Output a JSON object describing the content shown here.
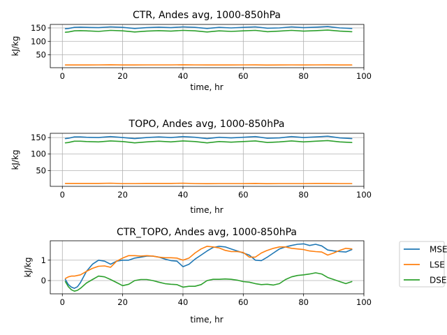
{
  "chart_data": [
    {
      "type": "line",
      "title": "CTR, Andes avg, 1000-850hPa",
      "xlabel": "time, hr",
      "ylabel": "kJ/kg",
      "xlim": [
        -4,
        100
      ],
      "ylim": [
        2,
        163
      ],
      "xticks": [
        0,
        20,
        40,
        60,
        80,
        100
      ],
      "yticks": [
        50,
        100,
        150
      ],
      "grid": true,
      "x": [
        1,
        2,
        4,
        6,
        8,
        12,
        16,
        20,
        24,
        28,
        32,
        36,
        40,
        44,
        48,
        52,
        56,
        60,
        64,
        68,
        72,
        76,
        80,
        84,
        88,
        92,
        96
      ],
      "series": [
        {
          "name": "MSE",
          "color": "#1f77b4",
          "values": [
            147,
            148,
            152,
            153,
            152,
            151,
            154,
            152,
            148,
            151,
            153,
            151,
            154,
            152,
            148,
            152,
            150,
            152,
            154,
            149,
            150,
            154,
            151,
            153,
            155,
            150,
            148
          ]
        },
        {
          "name": "LSE",
          "color": "#ff7f0e",
          "values": [
            12,
            12,
            12,
            12,
            12,
            12.5,
            13,
            12,
            12,
            12.3,
            12.5,
            12.5,
            13,
            12.4,
            12,
            12.2,
            12.2,
            12.3,
            12.6,
            11.8,
            12,
            12.3,
            12.1,
            12.4,
            12.6,
            12,
            12
          ]
        },
        {
          "name": "DSE",
          "color": "#2ca02c",
          "values": [
            134,
            135,
            139,
            140,
            139,
            137,
            141,
            139,
            135,
            138,
            140,
            138,
            141,
            139,
            135,
            139,
            137,
            139,
            141,
            136,
            138,
            141,
            138,
            140,
            142,
            138,
            136
          ]
        }
      ]
    },
    {
      "type": "line",
      "title": "TOPO, Andes avg, 1000-850hPa",
      "xlabel": "time, hr",
      "ylabel": "kJ/kg",
      "xlim": [
        -4,
        100
      ],
      "ylim": [
        2,
        163
      ],
      "xticks": [
        0,
        20,
        40,
        60,
        80,
        100
      ],
      "yticks": [
        50,
        100,
        150
      ],
      "grid": true,
      "x": [
        1,
        2,
        4,
        6,
        8,
        12,
        16,
        20,
        24,
        28,
        32,
        36,
        40,
        44,
        48,
        52,
        56,
        60,
        64,
        68,
        72,
        76,
        80,
        84,
        88,
        92,
        96
      ],
      "series": [
        {
          "name": "MSE",
          "color": "#1f77b4",
          "values": [
            147,
            148,
            152,
            152,
            151,
            150,
            153,
            150,
            147,
            150,
            152,
            150,
            153,
            151,
            147,
            151,
            149,
            151,
            153,
            148,
            149,
            153,
            150,
            152,
            154,
            149,
            147
          ]
        },
        {
          "name": "LSE",
          "color": "#ff7f0e",
          "values": [
            11,
            11,
            11,
            11,
            11,
            11,
            11.5,
            10.5,
            10.5,
            11,
            11,
            11,
            11.5,
            10.5,
            10,
            10.5,
            10.5,
            10.5,
            11,
            10,
            10.5,
            10.5,
            10.5,
            11,
            11,
            10.5,
            10.5
          ]
        },
        {
          "name": "DSE",
          "color": "#2ca02c",
          "values": [
            134,
            135,
            139,
            139,
            138,
            137,
            140,
            138,
            134,
            137,
            139,
            137,
            140,
            138,
            134,
            138,
            136,
            138,
            140,
            135,
            137,
            140,
            137,
            139,
            141,
            137,
            135
          ]
        }
      ]
    },
    {
      "type": "line",
      "title": "CTR_TOPO, Andes avg, 1000-850hPa",
      "xlabel": "time, hr",
      "ylabel": "kJ/kg",
      "xlim": [
        -4,
        100
      ],
      "ylim": [
        -0.65,
        1.95
      ],
      "xticks": [
        0,
        20,
        40,
        60,
        80,
        100
      ],
      "yticks": [
        0,
        1
      ],
      "grid": true,
      "legend": "right",
      "x": [
        1,
        2,
        3,
        4,
        5,
        6,
        8,
        10,
        12,
        14,
        16,
        18,
        20,
        22,
        24,
        26,
        28,
        30,
        32,
        34,
        36,
        38,
        40,
        42,
        44,
        46,
        48,
        50,
        52,
        54,
        56,
        58,
        60,
        62,
        64,
        66,
        68,
        70,
        72,
        74,
        76,
        78,
        80,
        82,
        84,
        86,
        88,
        90,
        92,
        94,
        96
      ],
      "series": [
        {
          "name": "MSE",
          "color": "#1f77b4",
          "values": [
            0.05,
            -0.2,
            -0.32,
            -0.38,
            -0.3,
            -0.1,
            0.45,
            0.8,
            1.0,
            0.95,
            0.8,
            0.95,
            1.0,
            1.0,
            1.1,
            1.15,
            1.2,
            1.2,
            1.15,
            1.05,
            0.98,
            0.95,
            0.68,
            0.8,
            1.05,
            1.25,
            1.45,
            1.62,
            1.68,
            1.65,
            1.55,
            1.45,
            1.35,
            1.25,
            1.0,
            0.98,
            1.15,
            1.35,
            1.55,
            1.65,
            1.72,
            1.78,
            1.8,
            1.72,
            1.78,
            1.7,
            1.5,
            1.45,
            1.42,
            1.4,
            1.52
          ]
        },
        {
          "name": "LSE",
          "color": "#ff7f0e",
          "values": [
            0.1,
            0.18,
            0.22,
            0.22,
            0.25,
            0.28,
            0.45,
            0.6,
            0.7,
            0.72,
            0.65,
            0.95,
            1.1,
            1.22,
            1.22,
            1.2,
            1.22,
            1.2,
            1.15,
            1.12,
            1.12,
            1.1,
            1.0,
            1.1,
            1.35,
            1.55,
            1.68,
            1.65,
            1.6,
            1.48,
            1.42,
            1.42,
            1.38,
            1.15,
            1.15,
            1.35,
            1.48,
            1.58,
            1.65,
            1.65,
            1.58,
            1.55,
            1.52,
            1.45,
            1.42,
            1.4,
            1.25,
            1.35,
            1.48,
            1.58,
            1.55
          ]
        },
        {
          "name": "DSE",
          "color": "#2ca02c",
          "values": [
            -0.05,
            -0.3,
            -0.45,
            -0.52,
            -0.48,
            -0.38,
            -0.12,
            0.05,
            0.22,
            0.18,
            0.05,
            -0.1,
            -0.25,
            -0.18,
            0.0,
            0.05,
            0.05,
            0.0,
            -0.08,
            -0.15,
            -0.18,
            -0.2,
            -0.32,
            -0.28,
            -0.28,
            -0.2,
            0.0,
            0.06,
            0.06,
            0.08,
            0.06,
            0.02,
            -0.05,
            -0.08,
            -0.15,
            -0.2,
            -0.18,
            -0.22,
            -0.15,
            0.05,
            0.18,
            0.25,
            0.28,
            0.32,
            0.38,
            0.32,
            0.15,
            0.05,
            -0.05,
            -0.15,
            -0.05
          ]
        }
      ]
    }
  ]
}
